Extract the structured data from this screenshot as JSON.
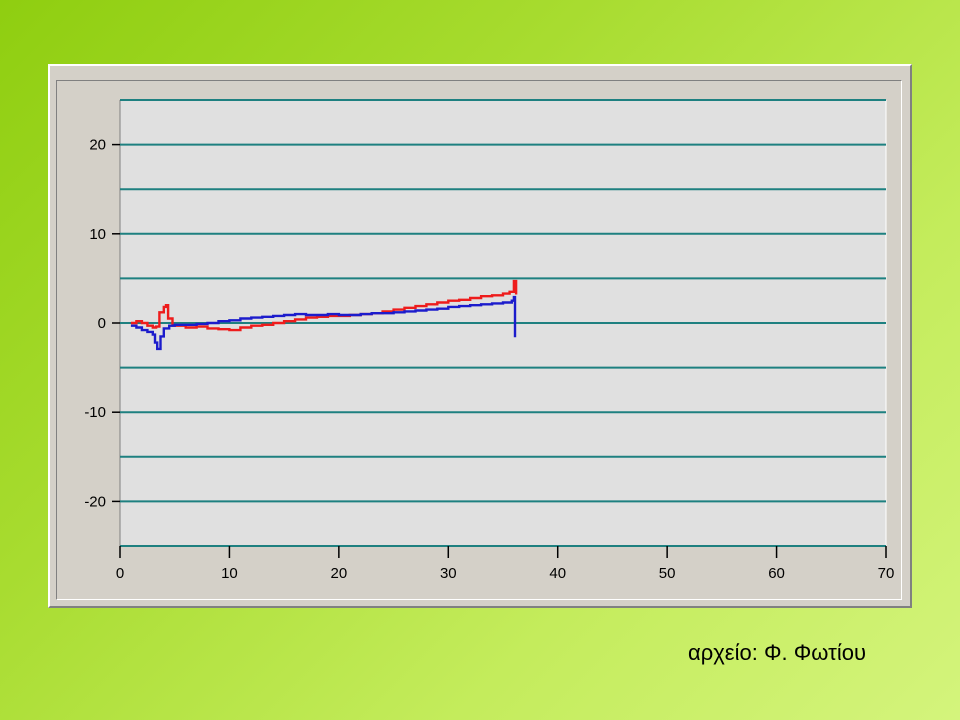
{
  "credit": "αρχείο: Φ. Φωτίου",
  "colors": {
    "plot_background": "#e0e0e0",
    "gridline": "#1e8080",
    "series_red": "#ee1c1c",
    "series_blue": "#1c1ccc"
  },
  "chart_data": {
    "type": "line",
    "title": "",
    "xlabel": "",
    "ylabel": "",
    "xlim": [
      0,
      70
    ],
    "ylim": [
      -25,
      25
    ],
    "x_ticks": [
      0,
      10,
      20,
      30,
      40,
      50,
      60,
      70
    ],
    "y_ticks": [
      20,
      10,
      0,
      -10,
      -20
    ],
    "x_tick_labels": [
      "0",
      "10",
      "20",
      "30",
      "40",
      "50",
      "60",
      "70"
    ],
    "y_tick_labels": [
      "20",
      "10",
      "0",
      "-10",
      "-20"
    ],
    "gridlines_y": [
      25,
      20,
      15,
      10,
      5,
      0,
      -5,
      -10,
      -15,
      -20,
      -25
    ],
    "grid": true,
    "legend": "none",
    "series": [
      {
        "color": "#ee1c1c",
        "points": [
          [
            1.0,
            0.0
          ],
          [
            1.5,
            0.2
          ],
          [
            2.0,
            0.0
          ],
          [
            2.5,
            -0.3
          ],
          [
            3.0,
            -0.5
          ],
          [
            3.3,
            -0.4
          ],
          [
            3.6,
            1.2
          ],
          [
            4.0,
            1.8
          ],
          [
            4.2,
            2.0
          ],
          [
            4.4,
            0.5
          ],
          [
            4.8,
            -0.3
          ],
          [
            5.5,
            -0.3
          ],
          [
            6.0,
            -0.5
          ],
          [
            7.0,
            -0.4
          ],
          [
            8.0,
            -0.6
          ],
          [
            9.0,
            -0.7
          ],
          [
            10.0,
            -0.8
          ],
          [
            11.0,
            -0.5
          ],
          [
            12.0,
            -0.3
          ],
          [
            13.0,
            -0.2
          ],
          [
            14.0,
            0.0
          ],
          [
            15.0,
            0.2
          ],
          [
            16.0,
            0.4
          ],
          [
            17.0,
            0.6
          ],
          [
            18.0,
            0.7
          ],
          [
            19.0,
            0.8
          ],
          [
            20.0,
            0.8
          ],
          [
            21.0,
            0.9
          ],
          [
            22.0,
            1.0
          ],
          [
            23.0,
            1.1
          ],
          [
            24.0,
            1.3
          ],
          [
            25.0,
            1.5
          ],
          [
            26.0,
            1.7
          ],
          [
            27.0,
            1.9
          ],
          [
            28.0,
            2.1
          ],
          [
            29.0,
            2.3
          ],
          [
            30.0,
            2.5
          ],
          [
            31.0,
            2.6
          ],
          [
            32.0,
            2.8
          ],
          [
            33.0,
            3.0
          ],
          [
            34.0,
            3.1
          ],
          [
            35.0,
            3.3
          ],
          [
            35.6,
            3.5
          ],
          [
            36.0,
            4.7
          ],
          [
            36.2,
            3.2
          ]
        ]
      },
      {
        "color": "#1c1ccc",
        "points": [
          [
            1.0,
            -0.3
          ],
          [
            1.5,
            -0.5
          ],
          [
            2.0,
            -0.8
          ],
          [
            2.5,
            -1.0
          ],
          [
            3.0,
            -1.3
          ],
          [
            3.2,
            -2.2
          ],
          [
            3.4,
            -2.9
          ],
          [
            3.7,
            -1.5
          ],
          [
            4.0,
            -0.6
          ],
          [
            4.5,
            -0.3
          ],
          [
            5.0,
            -0.2
          ],
          [
            6.0,
            -0.2
          ],
          [
            7.0,
            -0.1
          ],
          [
            8.0,
            0.0
          ],
          [
            9.0,
            0.2
          ],
          [
            10.0,
            0.3
          ],
          [
            11.0,
            0.5
          ],
          [
            12.0,
            0.6
          ],
          [
            13.0,
            0.7
          ],
          [
            14.0,
            0.8
          ],
          [
            15.0,
            0.9
          ],
          [
            16.0,
            1.0
          ],
          [
            17.0,
            0.9
          ],
          [
            18.0,
            0.9
          ],
          [
            19.0,
            1.0
          ],
          [
            20.0,
            0.9
          ],
          [
            21.0,
            0.9
          ],
          [
            22.0,
            1.0
          ],
          [
            23.0,
            1.1
          ],
          [
            24.0,
            1.1
          ],
          [
            25.0,
            1.2
          ],
          [
            26.0,
            1.3
          ],
          [
            27.0,
            1.4
          ],
          [
            28.0,
            1.5
          ],
          [
            29.0,
            1.6
          ],
          [
            30.0,
            1.8
          ],
          [
            31.0,
            1.9
          ],
          [
            32.0,
            2.0
          ],
          [
            33.0,
            2.1
          ],
          [
            34.0,
            2.2
          ],
          [
            35.0,
            2.3
          ],
          [
            35.8,
            2.5
          ],
          [
            36.0,
            2.9
          ],
          [
            36.1,
            -1.6
          ]
        ]
      }
    ]
  }
}
